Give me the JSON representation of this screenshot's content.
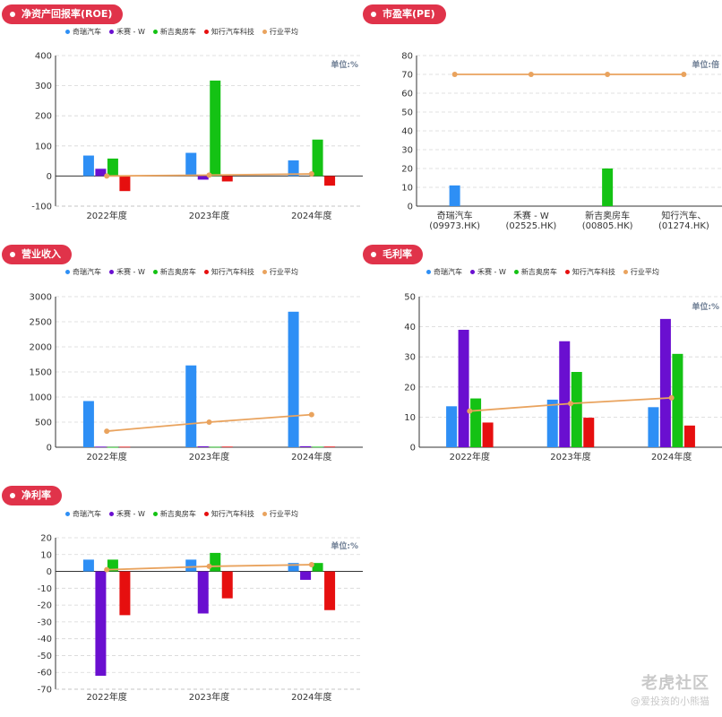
{
  "legend": [
    {
      "name": "奇瑞汽车",
      "color": "#2e8ff5"
    },
    {
      "name": "禾赛 - W",
      "color": "#6a0fd0"
    },
    {
      "name": "新吉奥房车",
      "color": "#14c214"
    },
    {
      "name": "知行汽车科技",
      "color": "#e60f0f"
    },
    {
      "name": "行业平均",
      "color": "#e9a35e"
    }
  ],
  "watermark": {
    "logo": "老虎社区",
    "sub": "@爱投资的小熊猫"
  },
  "chart_data": [
    {
      "id": "roe",
      "type": "bar",
      "title": "净资产回报率(ROE)",
      "unit": "单位:%",
      "categories": [
        "2022年度",
        "2023年度",
        "2024年度"
      ],
      "yticks": [
        400,
        300,
        200,
        100,
        0,
        -100
      ],
      "ylim": [
        -100,
        400
      ],
      "legend": true,
      "series": [
        {
          "name": "奇瑞汽车",
          "values": [
            68,
            77,
            52
          ]
        },
        {
          "name": "禾赛 - W",
          "values": [
            24,
            -12,
            null
          ]
        },
        {
          "name": "新吉奥房车",
          "values": [
            58,
            317,
            121
          ]
        },
        {
          "name": "知行汽车科技",
          "values": [
            -50,
            -18,
            -32
          ]
        }
      ],
      "line": {
        "name": "行业平均",
        "values": [
          0,
          3,
          7
        ]
      }
    },
    {
      "id": "pe",
      "type": "bar",
      "title": "市盈率(PE)",
      "unit": "单位:倍",
      "categories": [
        "奇瑞汽车\n(09973.HK)",
        "禾赛 - W\n(02525.HK)",
        "新吉奥房车\n(00805.HK)",
        "知行汽车、\n(01274.HK)"
      ],
      "yticks": [
        80,
        70,
        60,
        50,
        40,
        30,
        20,
        10,
        0
      ],
      "ylim": [
        0,
        80
      ],
      "legend": false,
      "values": [
        11,
        null,
        20,
        null
      ],
      "colors": [
        "#2e8ff5",
        "#6a0fd0",
        "#14c214",
        "#e60f0f"
      ],
      "line": {
        "name": "行业平均",
        "values": [
          70,
          70,
          70,
          70
        ]
      }
    },
    {
      "id": "revenue",
      "type": "bar",
      "title": "营业收入",
      "unit": "",
      "categories": [
        "2022年度",
        "2023年度",
        "2024年度"
      ],
      "yticks": [
        3000,
        2500,
        2000,
        1500,
        1000,
        500,
        0
      ],
      "ylim": [
        0,
        3000
      ],
      "legend": true,
      "series": [
        {
          "name": "奇瑞汽车",
          "values": [
            920,
            1630,
            2700
          ]
        },
        {
          "name": "禾赛 - W",
          "values": [
            12,
            18,
            20
          ]
        },
        {
          "name": "新吉奥房车",
          "values": [
            5,
            8,
            10
          ]
        },
        {
          "name": "知行汽车科技",
          "values": [
            10,
            12,
            13
          ]
        }
      ],
      "line": {
        "name": "行业平均",
        "values": [
          320,
          500,
          650
        ]
      }
    },
    {
      "id": "gross",
      "type": "bar",
      "title": "毛利率",
      "unit": "单位:%",
      "categories": [
        "2022年度",
        "2023年度",
        "2024年度"
      ],
      "yticks": [
        50,
        40,
        30,
        20,
        10,
        0
      ],
      "ylim": [
        0,
        50
      ],
      "legend": true,
      "series": [
        {
          "name": "奇瑞汽车",
          "values": [
            13.6,
            15.8,
            13.3
          ]
        },
        {
          "name": "禾赛 - W",
          "values": [
            39,
            35.2,
            42.6
          ]
        },
        {
          "name": "新吉奥房车",
          "values": [
            16.2,
            25,
            31
          ]
        },
        {
          "name": "知行汽车科技",
          "values": [
            8.2,
            9.8,
            7.2
          ]
        }
      ],
      "line": {
        "name": "行业平均",
        "values": [
          12,
          14.5,
          16.4
        ]
      }
    },
    {
      "id": "net",
      "type": "bar",
      "title": "净利率",
      "unit": "单位:%",
      "categories": [
        "2022年度",
        "2023年度",
        "2024年度"
      ],
      "yticks": [
        20,
        10,
        0,
        -10,
        -20,
        -30,
        -40,
        -50,
        -60,
        -70
      ],
      "ylim": [
        -70,
        20
      ],
      "legend": true,
      "series": [
        {
          "name": "奇瑞汽车",
          "values": [
            7,
            7,
            5
          ]
        },
        {
          "name": "禾赛 - W",
          "values": [
            -62,
            -25,
            -5
          ]
        },
        {
          "name": "新吉奥房车",
          "values": [
            7,
            11,
            5
          ]
        },
        {
          "name": "知行汽车科技",
          "values": [
            -26,
            -16,
            -23
          ]
        }
      ],
      "line": {
        "name": "行业平均",
        "values": [
          1,
          3,
          4
        ]
      }
    }
  ]
}
